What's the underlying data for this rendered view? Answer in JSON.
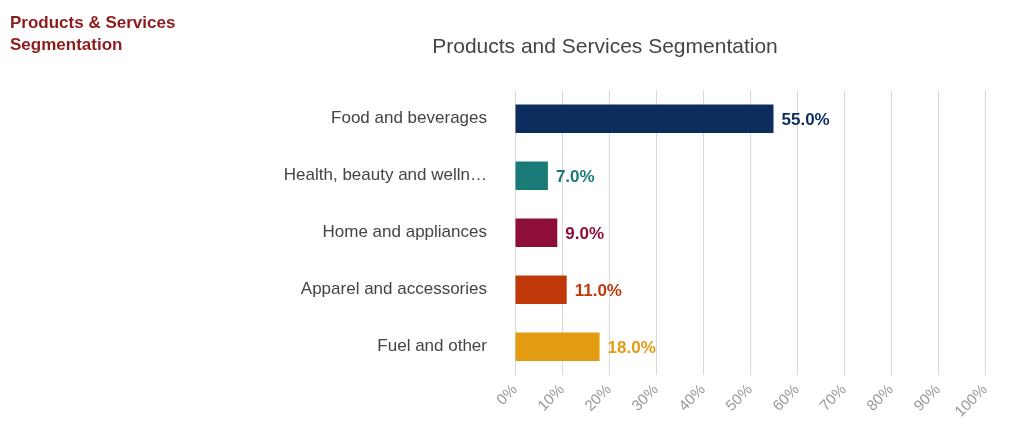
{
  "chart_data": {
    "type": "bar",
    "orientation": "horizontal",
    "title": "Products and Services Segmentation",
    "annotations": [
      "Products & Services Segmentation"
    ],
    "categories": [
      "Food and beverages",
      "Health, beauty and welln…",
      "Home and appliances",
      "Apparel and accessories",
      "Fuel and other"
    ],
    "values": [
      55,
      7,
      9,
      11,
      18
    ],
    "colors": [
      "#0b2e5e",
      "#1a7a78",
      "#8e0e3a",
      "#c0390b",
      "#e39c12"
    ],
    "value_labels": [
      "55.0%",
      "7.0%",
      "9.0%",
      "11.0%",
      "18.0%"
    ],
    "xlim": [
      0,
      100
    ],
    "xticks": [
      {
        "value": 0,
        "label": "0%"
      },
      {
        "value": 10,
        "label": "10%"
      },
      {
        "value": 20,
        "label": "20%"
      },
      {
        "value": 30,
        "label": "30%"
      },
      {
        "value": 40,
        "label": "40%"
      },
      {
        "value": 50,
        "label": "50%"
      },
      {
        "value": 60,
        "label": "60%"
      },
      {
        "value": 70,
        "label": "70%"
      },
      {
        "value": 80,
        "label": "80%"
      },
      {
        "value": 90,
        "label": "90%"
      },
      {
        "value": 100,
        "label": "100%"
      }
    ],
    "grid": "x",
    "legend": false
  }
}
